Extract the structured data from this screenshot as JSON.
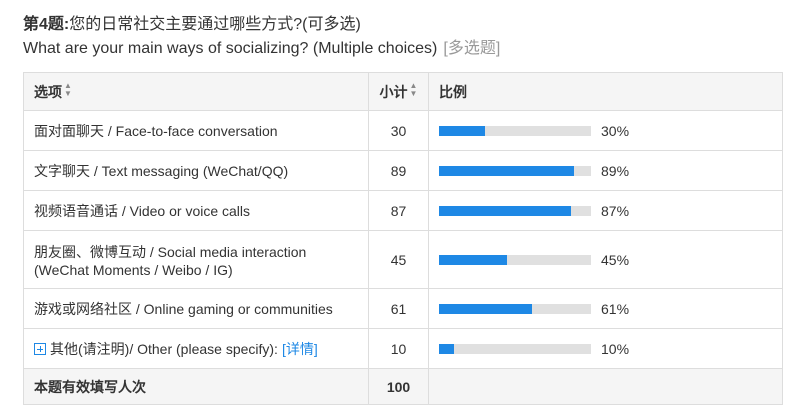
{
  "question": {
    "number_label": "第4题:",
    "title_cn": "您的日常社交主要通过哪些方式?(可多选)",
    "title_en": "What are your main ways of socializing? (Multiple choices)",
    "type_tag": "[多选题]"
  },
  "table": {
    "headers": {
      "option": "选项",
      "count": "小计",
      "ratio": "比例"
    },
    "rows": [
      {
        "label": "面对面聊天 / Face-to-face conversation",
        "count": "30",
        "percent": 30,
        "percent_label": "30%"
      },
      {
        "label": "文字聊天 / Text messaging (WeChat/QQ)",
        "count": "89",
        "percent": 89,
        "percent_label": "89%"
      },
      {
        "label": "视频语音通话 / Video or voice calls",
        "count": "87",
        "percent": 87,
        "percent_label": "87%"
      },
      {
        "label_line1": "朋友圈、微博互动 / Social media interaction",
        "label_line2": "(WeChat Moments / Weibo / IG)",
        "count": "45",
        "percent": 45,
        "percent_label": "45%"
      },
      {
        "label": "游戏或网络社区 / Online gaming or communities",
        "count": "61",
        "percent": 61,
        "percent_label": "61%"
      },
      {
        "label": "其他(请注明)/ Other (please specify):",
        "detail_link": "[详情]",
        "count": "10",
        "percent": 10,
        "percent_label": "10%"
      }
    ],
    "summary": {
      "label": "本题有效填写人次",
      "count": "100"
    }
  },
  "colors": {
    "bar_fill": "#1e88e5",
    "bar_track": "#e0e0e0",
    "header_bg": "#f5f5f5",
    "link": "#1e88e5"
  },
  "icons": {
    "sort": "sort-updown-icon",
    "expand": "plus-square-icon"
  }
}
